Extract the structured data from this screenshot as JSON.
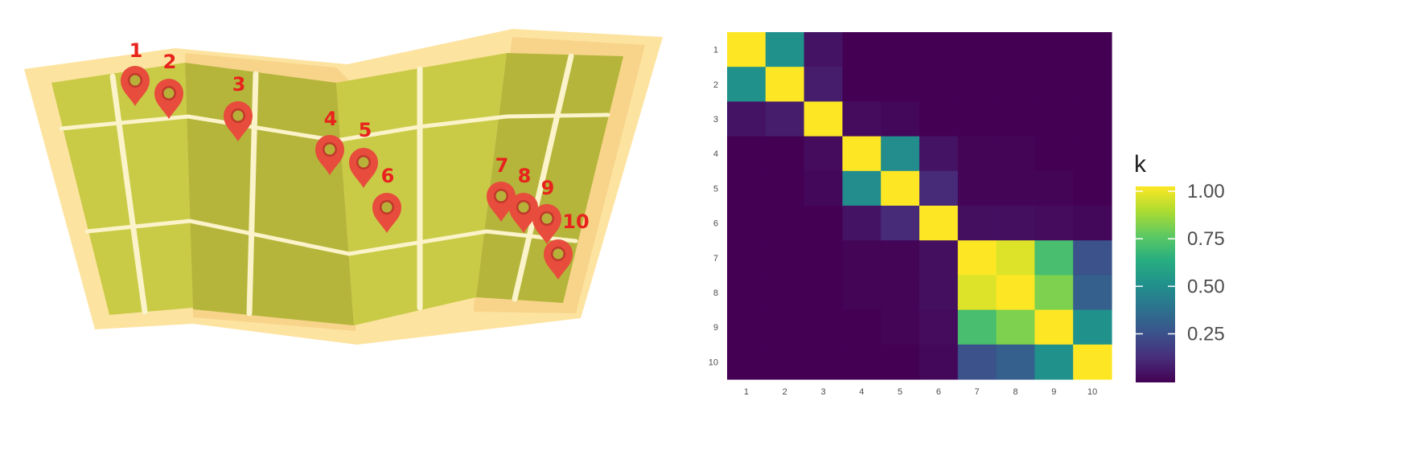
{
  "map": {
    "pins": [
      {
        "label": "1"
      },
      {
        "label": "2"
      },
      {
        "label": "3"
      },
      {
        "label": "4"
      },
      {
        "label": "5"
      },
      {
        "label": "6"
      },
      {
        "label": "7"
      },
      {
        "label": "8"
      },
      {
        "label": "9"
      },
      {
        "label": "10"
      }
    ],
    "colors": {
      "pin": "#e74c3c",
      "label": "#e8231d",
      "paper": "#fde3a0",
      "land": "#c9cb47",
      "road": "#fbf3c9"
    }
  },
  "chart_data": {
    "type": "heatmap",
    "x_categories": [
      "1",
      "2",
      "3",
      "4",
      "5",
      "6",
      "7",
      "8",
      "9",
      "10"
    ],
    "y_categories": [
      "1",
      "2",
      "3",
      "4",
      "5",
      "6",
      "7",
      "8",
      "9",
      "10"
    ],
    "values": [
      [
        1.0,
        0.5,
        0.05,
        0.0,
        0.0,
        0.0,
        0.0,
        0.0,
        0.0,
        0.0
      ],
      [
        0.5,
        1.0,
        0.08,
        0.0,
        0.0,
        0.0,
        0.0,
        0.0,
        0.0,
        0.0
      ],
      [
        0.05,
        0.08,
        1.0,
        0.03,
        0.02,
        0.0,
        0.0,
        0.0,
        0.0,
        0.0
      ],
      [
        0.0,
        0.0,
        0.03,
        1.0,
        0.48,
        0.05,
        0.01,
        0.01,
        0.0,
        0.0
      ],
      [
        0.0,
        0.0,
        0.02,
        0.48,
        1.0,
        0.12,
        0.01,
        0.01,
        0.01,
        0.0
      ],
      [
        0.0,
        0.0,
        0.0,
        0.05,
        0.12,
        1.0,
        0.04,
        0.04,
        0.03,
        0.02
      ],
      [
        0.0,
        0.0,
        0.0,
        0.01,
        0.01,
        0.04,
        1.0,
        0.95,
        0.7,
        0.25
      ],
      [
        0.0,
        0.0,
        0.0,
        0.01,
        0.01,
        0.04,
        0.95,
        1.0,
        0.8,
        0.3
      ],
      [
        0.0,
        0.0,
        0.0,
        0.0,
        0.01,
        0.03,
        0.7,
        0.8,
        1.0,
        0.5
      ],
      [
        0.0,
        0.0,
        0.0,
        0.0,
        0.0,
        0.02,
        0.25,
        0.3,
        0.5,
        1.0
      ]
    ],
    "color_scale": "viridis",
    "legend": {
      "title": "k",
      "ticks": [
        {
          "value": 1.0,
          "label": "1.00"
        },
        {
          "value": 0.75,
          "label": "0.75"
        },
        {
          "value": 0.5,
          "label": "0.50"
        },
        {
          "value": 0.25,
          "label": "0.25"
        }
      ],
      "range": [
        0,
        1
      ],
      "placement": "right"
    },
    "grid": false
  }
}
